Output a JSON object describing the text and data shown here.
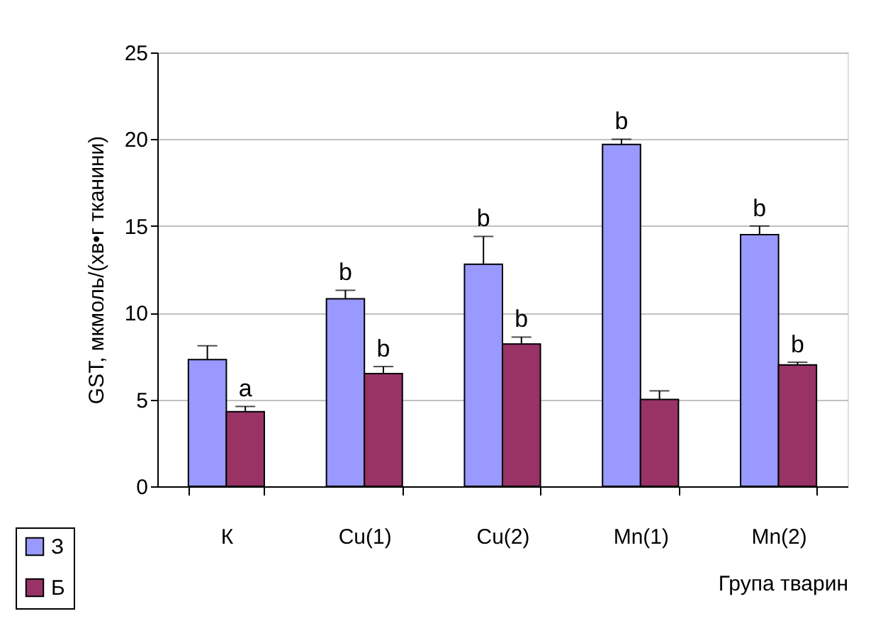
{
  "chart_data": {
    "type": "bar",
    "xlabel": "Група тварин",
    "ylabel": "GST, мкмоль/(хв•г тканини)",
    "categories": [
      "К",
      "Cu(1)",
      "Cu(2)",
      "Mn(1)",
      "Mn(2)"
    ],
    "series": [
      {
        "name": "З",
        "color": "#9999ff",
        "values": [
          7.3,
          10.8,
          12.8,
          19.7,
          14.5
        ],
        "errors": [
          0.8,
          0.5,
          1.6,
          0.3,
          0.5
        ]
      },
      {
        "name": "Б",
        "color": "#993366",
        "values": [
          4.3,
          6.5,
          8.2,
          5.0,
          7.0
        ],
        "errors": [
          0.3,
          0.4,
          0.4,
          0.5,
          0.15
        ]
      }
    ],
    "annotations": [
      {
        "text": "a",
        "x": "К",
        "y": 4.3
      },
      {
        "text": "b",
        "x": "Cu(1)",
        "y": 10.8
      },
      {
        "text": "b",
        "x": "Cu(1)",
        "y": 6.5
      },
      {
        "text": "b",
        "x": "Cu(2)",
        "y": 12.8
      },
      {
        "text": "b",
        "x": "Cu(2)",
        "y": 8.2
      },
      {
        "text": "b",
        "x": "Mn(1)",
        "y": 19.7
      },
      {
        "text": "b",
        "x": "Mn(2)",
        "y": 14.5
      },
      {
        "text": "b",
        "x": "Mn(2)",
        "y": 7.0
      }
    ],
    "ylim": [
      0,
      25
    ],
    "yticks": [
      0,
      5,
      10,
      15,
      20,
      25
    ],
    "grid": "y",
    "legend": "bottom left"
  }
}
